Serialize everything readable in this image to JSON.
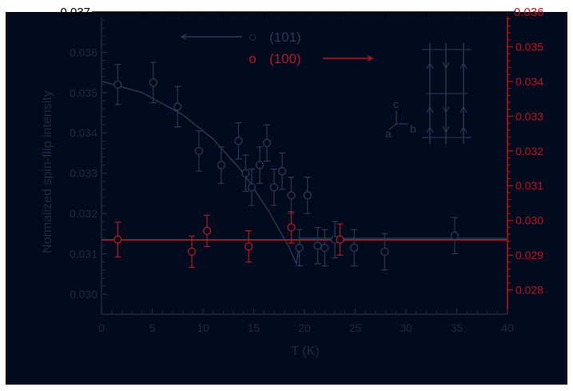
{
  "colors": {
    "background": "#020a1e",
    "axis_left": "#1e2b40",
    "axis_right": "#c0141c",
    "series_101": "#2a3a52",
    "series_100": "#b01c24",
    "page": "#ffffff"
  },
  "chart_data": {
    "type": "scatter",
    "xlabel": "T (K)",
    "ylabel_left": "Normalized spin-flip intensity",
    "ylabel_right": "",
    "xlim": [
      0,
      40
    ],
    "ylim_left": [
      0.0295,
      0.037
    ],
    "ylim_right": [
      0.0273,
      0.036
    ],
    "x_ticks": [
      "0",
      "5",
      "10",
      "15",
      "20",
      "25",
      "30",
      "35",
      "40"
    ],
    "y_ticks_left": [
      "0.030",
      "0.031",
      "0.032",
      "0.033",
      "0.034",
      "0.035",
      "0.036",
      "0.037"
    ],
    "y_ticks_right": [
      "0.028",
      "0.029",
      "0.030",
      "0.031",
      "0.032",
      "0.033",
      "0.034",
      "0.035",
      "0.036"
    ],
    "top_left_label": "0.037",
    "top_right_label": "0.036",
    "legend": [
      {
        "marker": "○",
        "label": "(101)"
      },
      {
        "marker": "o",
        "label": "(100)"
      }
    ],
    "inset_axes": {
      "c": "c",
      "a": "a",
      "b": "b"
    },
    "series": [
      {
        "name": "(101)",
        "axis": "left",
        "points": [
          {
            "x": 1.6,
            "y": 0.0352,
            "err": 0.0005
          },
          {
            "x": 5.1,
            "y": 0.03525,
            "err": 0.0005
          },
          {
            "x": 7.5,
            "y": 0.03465,
            "err": 0.0005
          },
          {
            "x": 9.6,
            "y": 0.03355,
            "err": 0.0005
          },
          {
            "x": 11.8,
            "y": 0.0332,
            "err": 0.00045
          },
          {
            "x": 13.5,
            "y": 0.0338,
            "err": 0.00045
          },
          {
            "x": 14.2,
            "y": 0.033,
            "err": 0.00045
          },
          {
            "x": 14.8,
            "y": 0.03265,
            "err": 0.00045
          },
          {
            "x": 15.6,
            "y": 0.0332,
            "err": 0.00045
          },
          {
            "x": 16.3,
            "y": 0.03375,
            "err": 0.00045
          },
          {
            "x": 17.0,
            "y": 0.03265,
            "err": 0.00045
          },
          {
            "x": 17.8,
            "y": 0.03305,
            "err": 0.00045
          },
          {
            "x": 18.7,
            "y": 0.03245,
            "err": 0.00045
          },
          {
            "x": 19.5,
            "y": 0.03115,
            "err": 0.00045
          },
          {
            "x": 20.3,
            "y": 0.03245,
            "err": 0.00045
          },
          {
            "x": 21.3,
            "y": 0.0312,
            "err": 0.00045
          },
          {
            "x": 22.0,
            "y": 0.03115,
            "err": 0.00045
          },
          {
            "x": 23.0,
            "y": 0.03135,
            "err": 0.00045
          },
          {
            "x": 24.9,
            "y": 0.03115,
            "err": 0.00045
          },
          {
            "x": 27.9,
            "y": 0.03105,
            "err": 0.00045
          },
          {
            "x": 34.8,
            "y": 0.03145,
            "err": 0.00045
          }
        ]
      },
      {
        "name": "(100)",
        "axis": "right",
        "points": [
          {
            "x": 1.6,
            "y": 0.02945,
            "err": 0.0005
          },
          {
            "x": 8.9,
            "y": 0.0291,
            "err": 0.00045
          },
          {
            "x": 10.4,
            "y": 0.0297,
            "err": 0.00045
          },
          {
            "x": 14.5,
            "y": 0.02925,
            "err": 0.00045
          },
          {
            "x": 18.7,
            "y": 0.0298,
            "err": 0.00045
          },
          {
            "x": 23.5,
            "y": 0.02945,
            "err": 0.00045
          }
        ]
      }
    ],
    "fits": [
      {
        "series": "(101)",
        "axis": "left",
        "points": [
          [
            0,
            0.03528
          ],
          [
            4,
            0.035
          ],
          [
            8,
            0.03445
          ],
          [
            11,
            0.03385
          ],
          [
            14,
            0.033
          ],
          [
            16.5,
            0.03205
          ],
          [
            18.5,
            0.03115
          ],
          [
            19.2,
            0.03075
          ],
          [
            19.6,
            0.03138
          ],
          [
            40,
            0.03138
          ]
        ]
      },
      {
        "series": "(100)",
        "axis": "right",
        "points": [
          [
            0,
            0.02944
          ],
          [
            40,
            0.02944
          ]
        ]
      }
    ]
  }
}
